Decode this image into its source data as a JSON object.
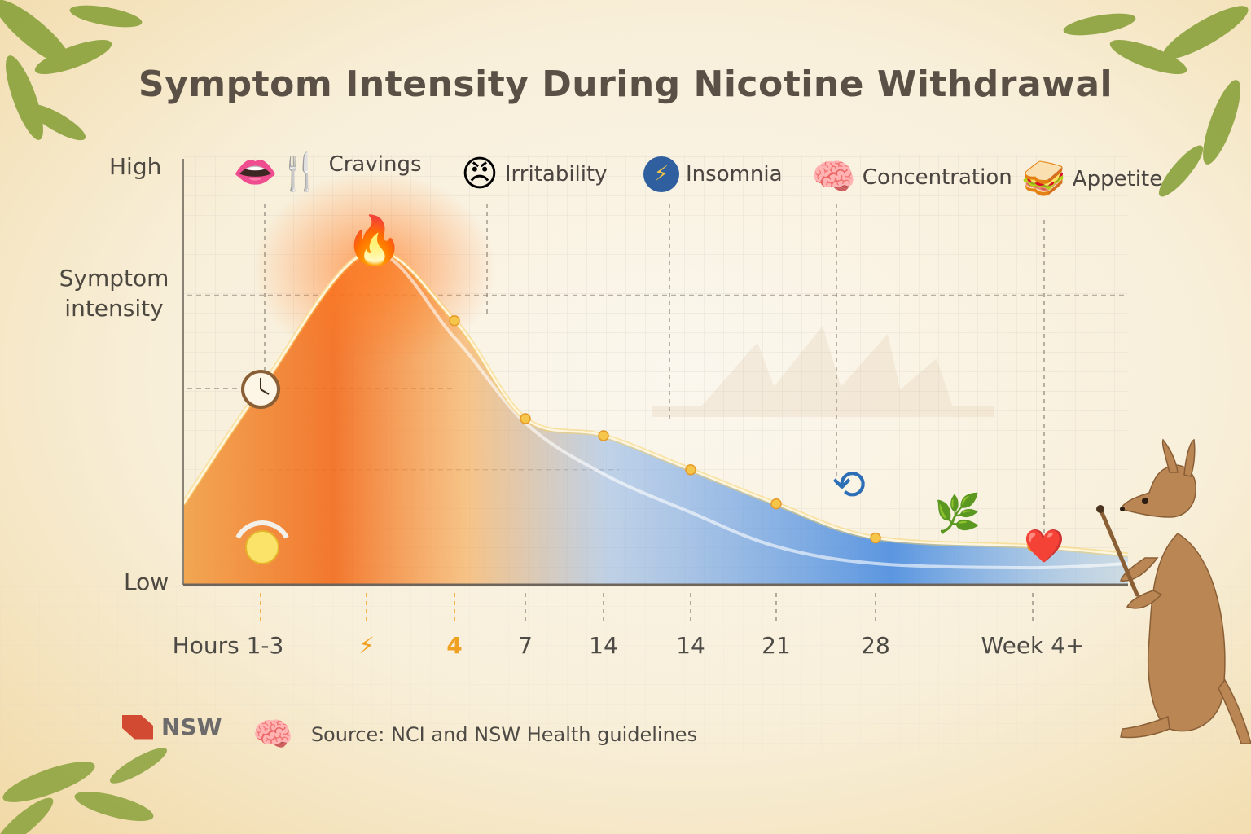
{
  "title": "Symptom Intensity During Nicotine Withdrawal",
  "y_axis": {
    "high": "High",
    "low": "Low",
    "label": "Symptom intensity"
  },
  "symptoms": [
    {
      "label": "Cravings",
      "icon": "mouth-utensils-icon",
      "emoji": "👄🍴"
    },
    {
      "label": "Irritability",
      "icon": "angry-face-icon",
      "emoji": "😠"
    },
    {
      "label": "Insomnia",
      "icon": "lightning-moon-icon",
      "emoji": "⚡"
    },
    {
      "label": "Concentration",
      "icon": "brain-icon",
      "emoji": "🧠"
    },
    {
      "label": "Appetite",
      "icon": "sandwich-icon",
      "emoji": "🥪"
    }
  ],
  "x_ticks": [
    {
      "text": "Hours 1-3",
      "highlight": false
    },
    {
      "text": "⚡",
      "highlight": true
    },
    {
      "text": "4",
      "highlight": true
    },
    {
      "text": "7",
      "highlight": false
    },
    {
      "text": "14",
      "highlight": false
    },
    {
      "text": "14",
      "highlight": false
    },
    {
      "text": "21",
      "highlight": false
    },
    {
      "text": "28",
      "highlight": false
    },
    {
      "text": "Week 4+",
      "highlight": false
    }
  ],
  "footer": {
    "logo_text": "NSW",
    "source": "Source: NCI and NSW Health guidelines"
  },
  "chart_data": {
    "type": "area",
    "title": "Symptom Intensity During Nicotine Withdrawal",
    "ylabel": "Symptom intensity",
    "y_scale_labels": [
      "Low",
      "High"
    ],
    "ylim": [
      0,
      1
    ],
    "x": [
      "Hours 1-3",
      "⚡",
      "4",
      "7",
      "14",
      "14",
      "21",
      "28",
      "Week 4+"
    ],
    "series": [
      {
        "values": [
          0.46,
          0.78,
          0.62,
          0.39,
          0.35,
          0.27,
          0.19,
          0.11,
          0.09
        ]
      }
    ],
    "secondary_curve": [
      0.46,
      0.78,
      0.58,
      0.38,
      0.26,
      0.17,
      0.09,
      0.05,
      0.04
    ],
    "grid": true,
    "colors": {
      "peak": "#f26a1b",
      "mid": "#f5b63a",
      "tail": "#3f86e0",
      "line": "#f7d060"
    }
  }
}
